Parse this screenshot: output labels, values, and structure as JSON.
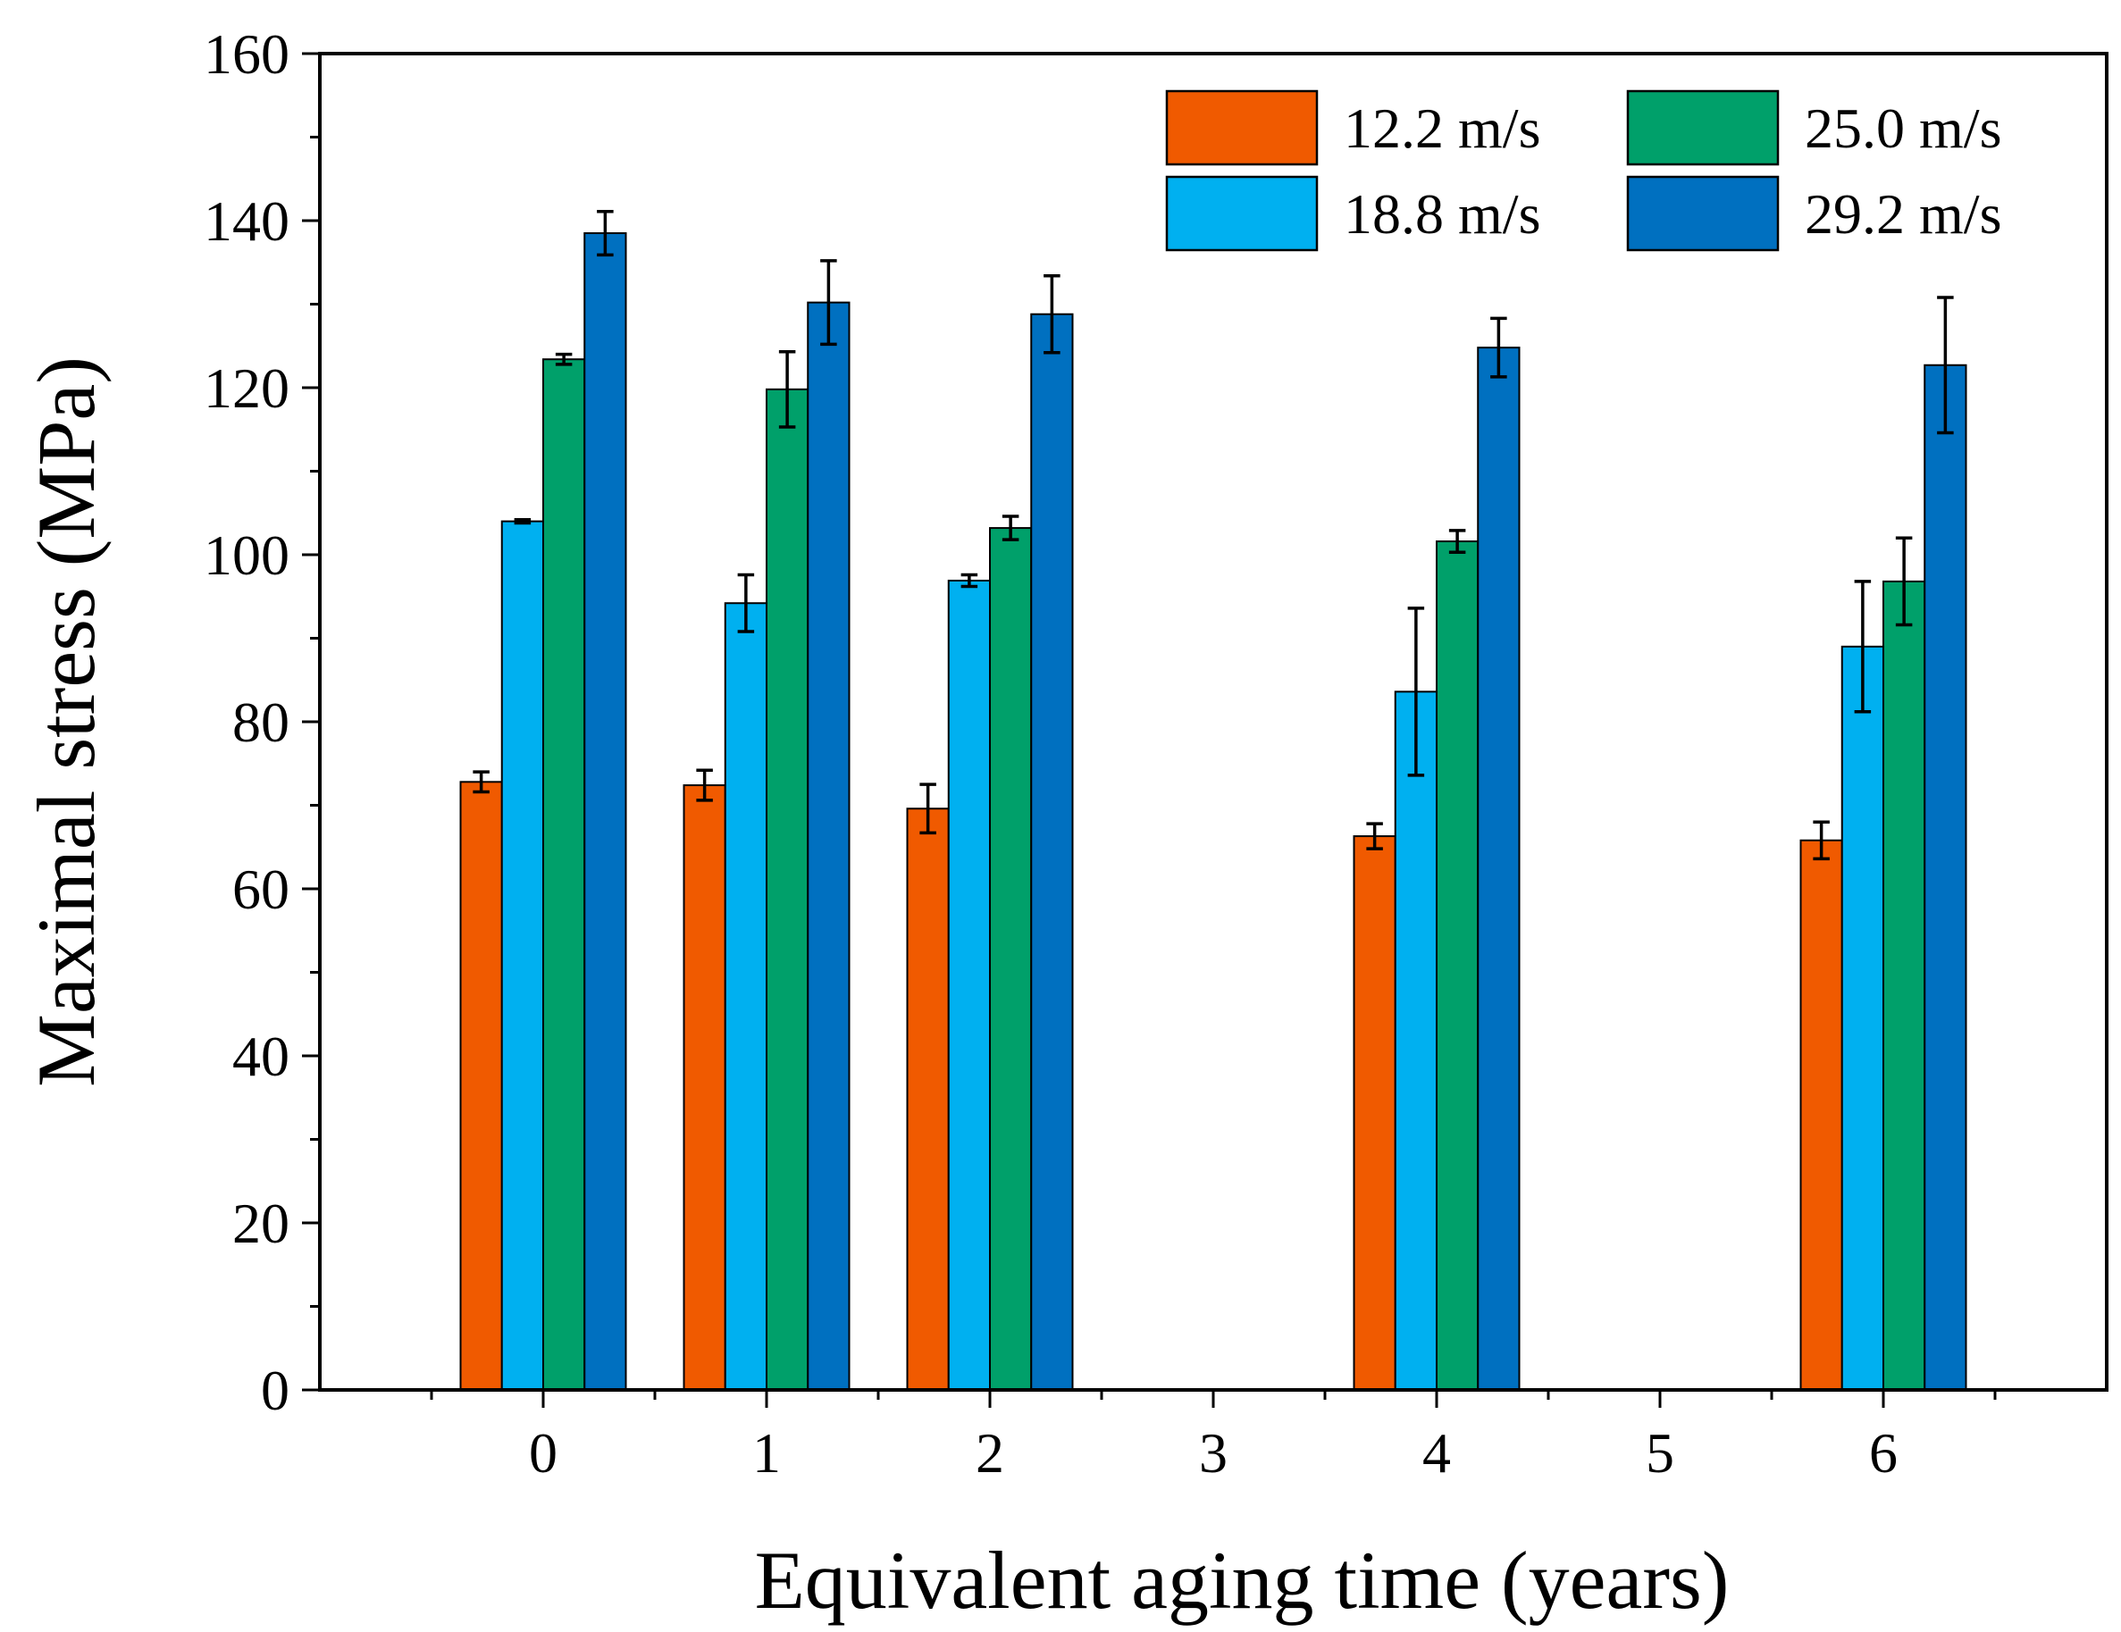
{
  "chart_data": {
    "type": "bar",
    "xlabel": "Equivalent aging time (years)",
    "ylabel": "Maximal stress (MPa)",
    "ylim": [
      0,
      160
    ],
    "xlim": [
      -1,
      7
    ],
    "yticks": [
      "0",
      "20",
      "40",
      "60",
      "80",
      "100",
      "120",
      "140",
      "160"
    ],
    "xticks": [
      "0",
      "1",
      "2",
      "3",
      "4",
      "5",
      "6"
    ],
    "grid": false,
    "legend_position": "top-right",
    "series": [
      {
        "name": "12.2 m/s",
        "color": "#f05a00",
        "x": [
          0,
          1,
          2,
          4,
          6
        ],
        "values": [
          72.8,
          72.4,
          69.6,
          66.3,
          65.8
        ],
        "errors": [
          1.2,
          1.8,
          2.9,
          1.5,
          2.2
        ]
      },
      {
        "name": "18.8 m/s",
        "color": "#00b0f0",
        "x": [
          0,
          1,
          2,
          4,
          6
        ],
        "values": [
          104.0,
          94.2,
          96.9,
          83.6,
          89.0
        ],
        "errors": [
          0.2,
          3.4,
          0.7,
          10.0,
          7.8
        ]
      },
      {
        "name": "25.0 m/s",
        "color": "#00a06a",
        "x": [
          0,
          1,
          2,
          4,
          6
        ],
        "values": [
          123.4,
          119.8,
          103.2,
          101.6,
          96.8
        ],
        "errors": [
          0.6,
          4.5,
          1.4,
          1.3,
          5.2
        ]
      },
      {
        "name": "29.2 m/s",
        "color": "#0070c0",
        "x": [
          0,
          1,
          2,
          4,
          6
        ],
        "values": [
          138.5,
          130.2,
          128.8,
          124.8,
          122.7
        ],
        "errors": [
          2.6,
          5.0,
          4.6,
          3.5,
          8.1
        ]
      }
    ]
  }
}
